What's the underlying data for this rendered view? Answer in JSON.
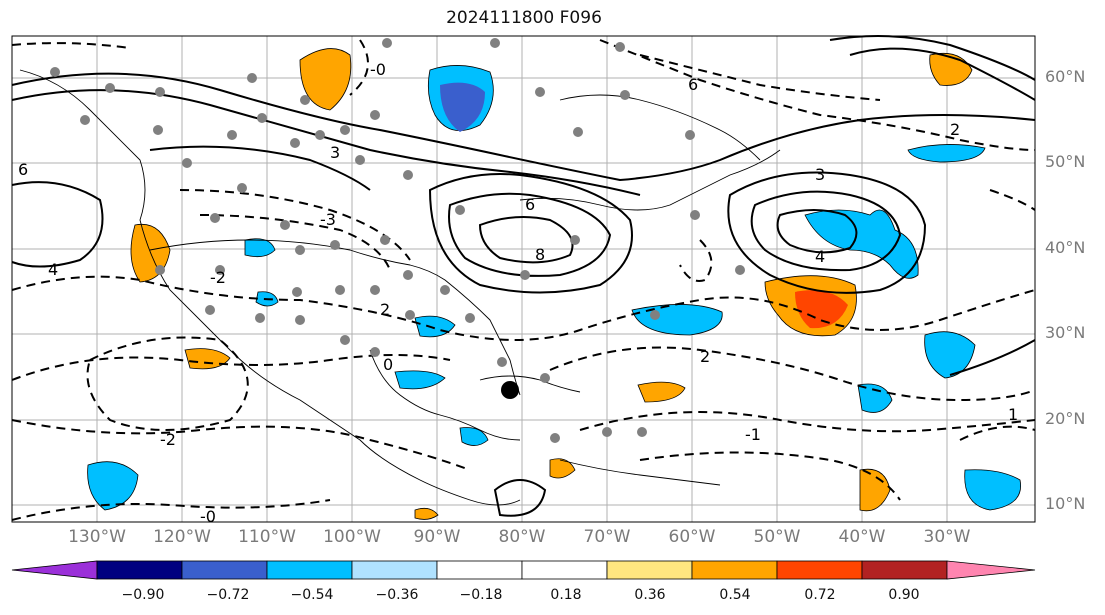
{
  "title": "2024111800 F096",
  "lat_labels": [
    "60°N",
    "50°N",
    "40°N",
    "30°N",
    "20°N",
    "10°N"
  ],
  "lon_labels": [
    "130°W",
    "120°W",
    "110°W",
    "100°W",
    "90°W",
    "80°W",
    "70°W",
    "60°W",
    "50°W",
    "40°W",
    "30°W"
  ],
  "contour_labels": [
    "-0",
    "6",
    "3",
    "-3",
    "4",
    "2",
    "-2",
    "8",
    "-0",
    "2",
    "-1",
    "1",
    "0"
  ],
  "colorbar": {
    "ticks": [
      "−0.90",
      "−0.72",
      "−0.54",
      "−0.36",
      "−0.18",
      "0.18",
      "0.36",
      "0.54",
      "0.72",
      "0.90"
    ],
    "colors": [
      "#9b30d9",
      "#000080",
      "#3a5fcd",
      "#00bfff",
      "#b0e2ff",
      "#ffffff",
      "#ffe680",
      "#ffa500",
      "#ff4500",
      "#b22222",
      "#ff85b0"
    ]
  }
}
